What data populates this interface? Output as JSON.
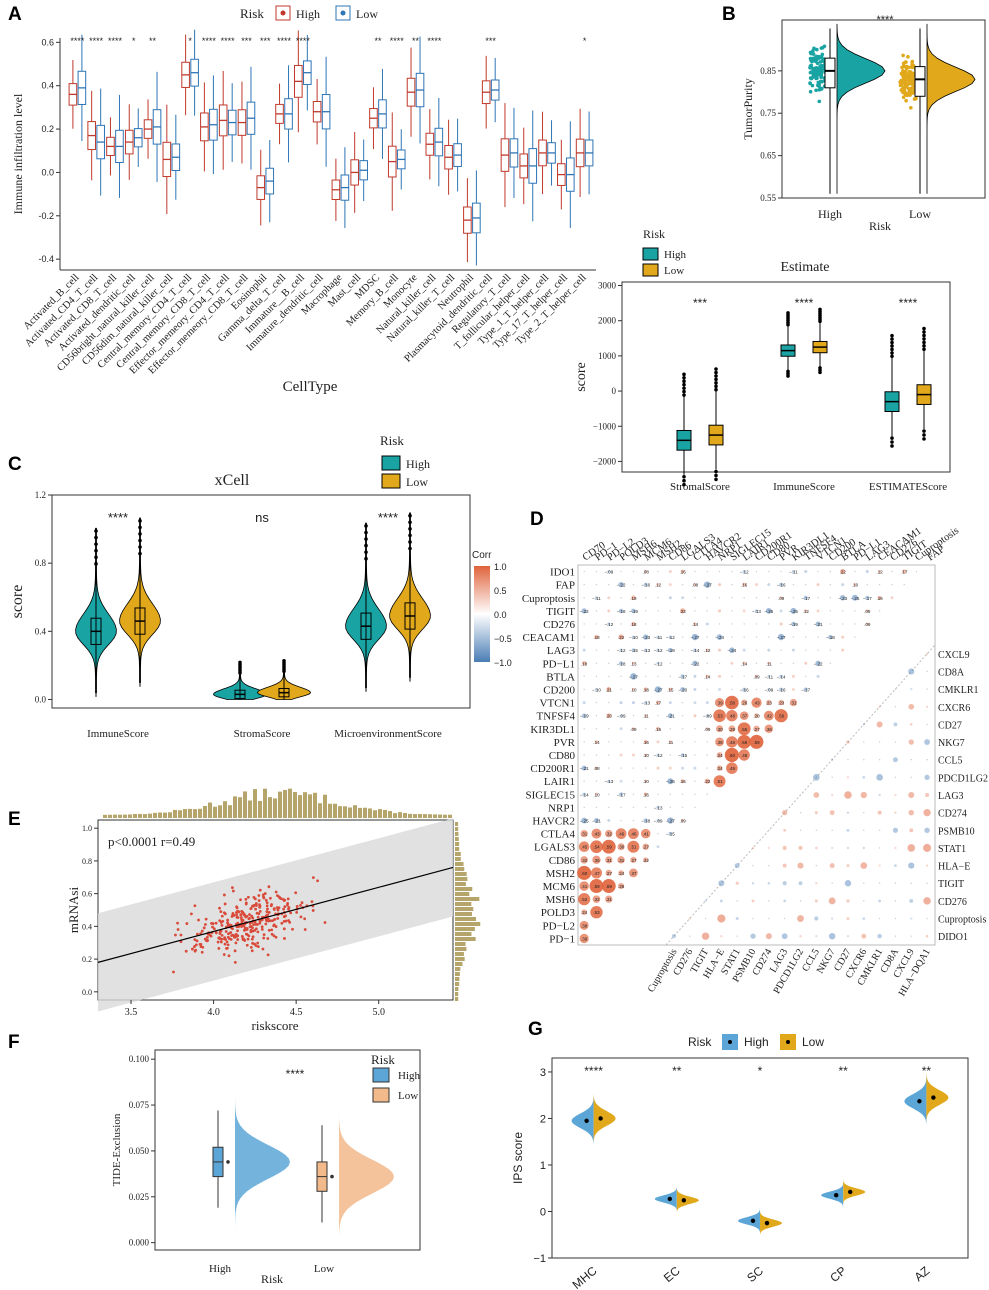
{
  "colors": {
    "high_a": "#c0392b",
    "low_a": "#2e75b6",
    "high_teal": "#1aa3a3",
    "low_gold": "#e0a81a",
    "high_blue": "#5ba6d6",
    "low_orange": "#f2b98a",
    "corr_pos": "#e0643c",
    "corr_neg": "#4a7db5"
  },
  "chart_data": [
    {
      "panel": "A",
      "type": "box",
      "legend_title": "Risk",
      "legend": [
        "High",
        "Low"
      ],
      "ylabel": "Immune infiltration level",
      "xlabel": "CellType",
      "ylim": [
        -0.45,
        0.62
      ],
      "yticks": [
        -0.4,
        -0.2,
        0.0,
        0.2,
        0.4,
        0.6
      ],
      "categories": [
        "Activated_B_cell",
        "Activated_CD4_T_cell",
        "Activated_CD8_T_cell",
        "Activated_dendritic_cell",
        "CD56bright_natural_killer_cell",
        "CD56dim_natural_killer_cell",
        "Central_memory_CD4_T_cell",
        "Central_memory_CD8_T_cell",
        "Effector_memeory_CD4_T_cell",
        "Effector_memeory_CD8_T_cell",
        "Eosinophil",
        "Gamma_delta_T_cell",
        "Immature__B_cell",
        "Immature_dendritic_cell",
        "Macrophage",
        "Mast_cell",
        "MDSC",
        "Memory_B_cell",
        "Monocyte",
        "Natural_killer_cell",
        "Natural_killer_T_cell",
        "Neutrophil",
        "Plasmacytoid_dendritic_cell",
        "Regulatory_T_cell",
        "T_follicular_helper_cell",
        "Type_1_T_helper_cell",
        "Type_17_T_helper_cell",
        "Type_2_T_helper_cell"
      ],
      "high_median": [
        0.36,
        0.17,
        0.12,
        0.14,
        0.2,
        0.06,
        0.45,
        0.21,
        0.24,
        0.23,
        -0.07,
        0.27,
        0.42,
        0.28,
        -0.08,
        0.0,
        0.25,
        0.05,
        0.37,
        0.13,
        0.07,
        -0.22,
        0.37,
        0.08,
        0.03,
        0.09,
        -0.01,
        0.09
      ],
      "low_median": [
        0.39,
        0.14,
        0.12,
        0.16,
        0.21,
        0.07,
        0.46,
        0.22,
        0.23,
        0.25,
        -0.04,
        0.27,
        0.46,
        0.28,
        -0.07,
        0.01,
        0.27,
        0.06,
        0.38,
        0.14,
        0.08,
        -0.21,
        0.38,
        0.09,
        0.03,
        0.09,
        -0.01,
        0.09
      ],
      "significance": [
        "****",
        "****",
        "****",
        "*",
        "**",
        "",
        "*",
        "****",
        "****",
        "***",
        "***",
        "****",
        "****",
        "",
        "",
        "",
        "**",
        "****",
        "**",
        "****",
        "",
        "",
        "***",
        "",
        "",
        "",
        "",
        "*"
      ]
    },
    {
      "panel": "B",
      "type": "raincloud",
      "ylabel": "TumorPurity",
      "xlabel": "Risk",
      "categories": [
        "High",
        "Low"
      ],
      "ylim": [
        0.55,
        0.97
      ],
      "yticks": [
        0.55,
        0.65,
        0.75,
        0.85
      ],
      "median": [
        0.85,
        0.83
      ],
      "significance": "****"
    },
    {
      "panel": "Estimate",
      "type": "box",
      "title": "Estimate",
      "ylabel": "score",
      "legend_title": "Risk",
      "legend": [
        "High",
        "Low"
      ],
      "categories": [
        "StromalScore",
        "ImmuneScore",
        "ESTIMATEScore"
      ],
      "ylim": [
        -2300,
        3100
      ],
      "yticks": [
        -2000,
        -1000,
        0,
        1000,
        2000,
        3000
      ],
      "high_median": [
        -1400,
        1150,
        -300
      ],
      "low_median": [
        -1250,
        1250,
        -100
      ],
      "significance": [
        "***",
        "****",
        "****"
      ]
    },
    {
      "panel": "C",
      "type": "violin",
      "title": "xCell",
      "ylabel": "score",
      "legend_title": "Risk",
      "legend": [
        "High",
        "Low"
      ],
      "categories": [
        "ImmuneScore",
        "StromaScore",
        "MicroenvironmentScore"
      ],
      "ylim": [
        -0.05,
        1.2
      ],
      "yticks": [
        0.0,
        0.4,
        0.8,
        1.2
      ],
      "ytick_labels": [
        "0.0",
        "0.4",
        "0.8",
        "1.2"
      ],
      "high_median": [
        0.4,
        0.03,
        0.43
      ],
      "low_median": [
        0.46,
        0.04,
        0.49
      ],
      "significance": [
        "****",
        "ns",
        "****"
      ]
    },
    {
      "panel": "D",
      "type": "heatmap",
      "legend_title": "Corr",
      "legend_ticks": [
        "1.0",
        "0.5",
        "0.0",
        "-0.5",
        "-1.0"
      ],
      "genes_left": [
        "IDO1",
        "FAP",
        "Cuproptosis",
        "TIGIT",
        "CD276",
        "CEACAM1",
        "LAG3",
        "PD−L1",
        "BTLA",
        "CD200",
        "VTCN1",
        "TNFSF4",
        "KIR3DL1",
        "PVR",
        "CD80",
        "CD200R1",
        "LAIR1",
        "SIGLEC15",
        "NRP1",
        "HAVCR2",
        "CTLA4",
        "LGALS3",
        "CD86",
        "MSH2",
        "MCM6",
        "MSH6",
        "POLD3",
        "PD−L2",
        "PD−1"
      ],
      "genes_top": [
        "CD70",
        "PD−1",
        "PD−L2",
        "POLD3",
        "MSH6",
        "MCM6",
        "MSH2",
        "CD86",
        "LGALS3",
        "CTLA4",
        "HAVCR2",
        "NRP1",
        "SIGLEC15",
        "LAIR1",
        "CD200R1",
        "CD80",
        "PVR",
        "KIR3DL1",
        "TNFSF4",
        "VTCN1",
        "CD200",
        "BTLA",
        "PD−L1",
        "LAG3",
        "CEACAM1",
        "CD276",
        "TIGIT",
        "Cuproptosis",
        "FAP"
      ],
      "genes_right": [
        "CXCL9",
        "CD8A",
        "CMKLR1",
        "CXCR6",
        "CD27",
        "NKG7",
        "CCL5",
        "PDCD1LG2",
        "LAG3",
        "CD274",
        "PSMB10",
        "STAT1",
        "HLA−E",
        "TIGIT",
        "CD276",
        "Cuproptosis",
        "DIDO1"
      ],
      "genes_bottom": [
        "Cuproptosis",
        "CD276",
        "TIGIT",
        "HLA−E",
        "STAT1",
        "PSMB10",
        "CD274",
        "LAG3",
        "PDCD1LG2",
        "CCL5",
        "NKG7",
        "CD27",
        "CXCR6",
        "CMKLR1",
        "CD8A",
        "CXCL9",
        "HLA−DQA1"
      ],
      "sample_values": [
        0.24,
        0.13,
        0.09,
        0.14,
        0.11,
        0.22,
        0.29,
        0.11,
        0.23,
        0.21,
        0.14,
        0.21,
        0.12,
        0.17,
        0.13,
        0.16,
        0.79,
        0.48,
        0.51,
        0.57,
        0.44,
        0.55,
        0.42,
        0.38,
        0.37,
        0.56
      ]
    },
    {
      "panel": "E",
      "type": "scatter",
      "xlabel": "riskscore",
      "ylabel": "mRNAsi",
      "annotation": "p<0.0001 r=0.49",
      "xlim": [
        3.3,
        5.45
      ],
      "ylim": [
        -0.05,
        1.05
      ],
      "xticks": [
        3.5,
        4.0,
        4.5,
        5.0
      ],
      "xtick_labels": [
        "3.5",
        "4.0",
        "4.5",
        "5.0"
      ],
      "yticks": [
        0.0,
        0.2,
        0.4,
        0.6,
        0.8,
        1.0
      ],
      "ytick_labels": [
        "0.0",
        "0.2",
        "0.4",
        "0.6",
        "0.8",
        "1.0"
      ],
      "fit_line": [
        [
          3.3,
          0.18
        ],
        [
          5.45,
          0.76
        ]
      ]
    },
    {
      "panel": "F",
      "type": "raincloud",
      "ylabel": "TIDE-Exclusion",
      "xlabel": "Risk",
      "legend_title": "Risk",
      "legend": [
        "High",
        "Low"
      ],
      "categories": [
        "High",
        "Low"
      ],
      "ylim": [
        -0.004,
        0.105
      ],
      "yticks": [
        0.0,
        0.025,
        0.05,
        0.075,
        0.1
      ],
      "ytick_labels": [
        "0.000",
        "0.025",
        "0.050",
        "0.075",
        "0.100"
      ],
      "median": [
        0.044,
        0.036
      ],
      "significance": "****"
    },
    {
      "panel": "G",
      "type": "split_violin",
      "ylabel": "IPS score",
      "legend_title": "Risk",
      "legend": [
        "High",
        "Low"
      ],
      "categories": [
        "MHC",
        "EC",
        "SC",
        "CP",
        "AZ"
      ],
      "ylim": [
        -1,
        3.3
      ],
      "yticks": [
        -1,
        0,
        1,
        2,
        3
      ],
      "high_mean": [
        1.95,
        0.27,
        -0.2,
        0.35,
        2.37
      ],
      "low_mean": [
        2.0,
        0.24,
        -0.25,
        0.42,
        2.45
      ],
      "significance": [
        "****",
        "**",
        "*",
        "**",
        "**"
      ]
    }
  ]
}
